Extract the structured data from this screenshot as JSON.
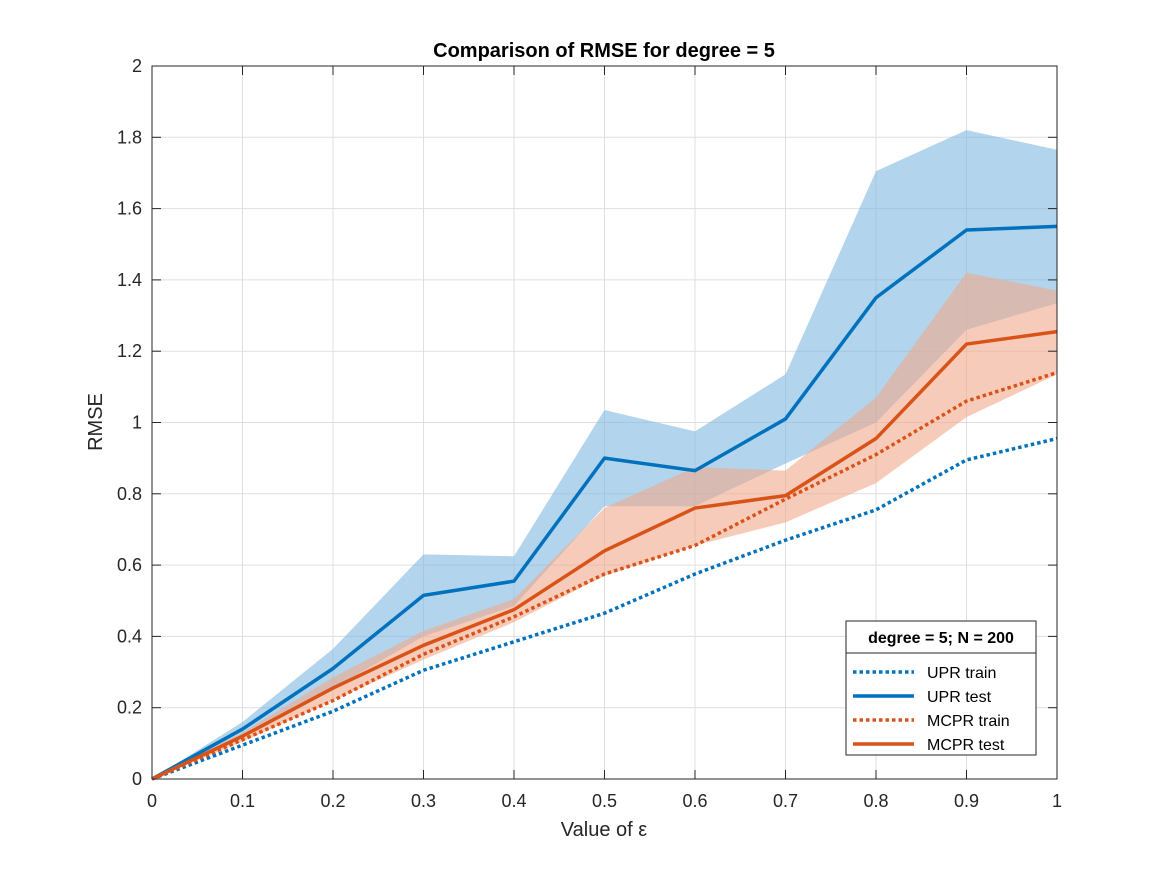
{
  "chart_data": {
    "type": "line",
    "title": "Comparison of RMSE for degree = 5",
    "xlabel": "Value of ε",
    "ylabel": "RMSE",
    "xlim": [
      0,
      1
    ],
    "ylim": [
      0,
      2
    ],
    "x": [
      0,
      0.1,
      0.2,
      0.3,
      0.4,
      0.5,
      0.6,
      0.7,
      0.8,
      0.9,
      1
    ],
    "xticks": [
      "0",
      "0.1",
      "0.2",
      "0.3",
      "0.4",
      "0.5",
      "0.6",
      "0.7",
      "0.8",
      "0.9",
      "1"
    ],
    "yticks": [
      "0",
      "0.2",
      "0.4",
      "0.6",
      "0.8",
      "1",
      "1.2",
      "1.4",
      "1.6",
      "1.8",
      "2"
    ],
    "grid": true,
    "legend_title": "degree = 5; N = 200",
    "legend_position": "bottom-right",
    "series": [
      {
        "name": "UPR train",
        "style": "dotted",
        "color": "#0072BD",
        "values": [
          0,
          0.095,
          0.19,
          0.305,
          0.385,
          0.465,
          0.575,
          0.67,
          0.755,
          0.895,
          0.955
        ]
      },
      {
        "name": "UPR test",
        "style": "solid",
        "color": "#0072BD",
        "values": [
          0,
          0.14,
          0.31,
          0.515,
          0.555,
          0.9,
          0.865,
          1.01,
          1.35,
          1.54,
          1.55
        ],
        "band_upper": [
          0,
          0.16,
          0.365,
          0.63,
          0.625,
          1.035,
          0.975,
          1.135,
          1.705,
          1.82,
          1.765
        ],
        "band_lower": [
          0,
          0.12,
          0.255,
          0.4,
          0.485,
          0.765,
          0.765,
          0.885,
          1.0,
          1.26,
          1.335
        ]
      },
      {
        "name": "MCPR train",
        "style": "dotted",
        "color": "#D95319",
        "values": [
          0,
          0.11,
          0.22,
          0.35,
          0.455,
          0.575,
          0.655,
          0.785,
          0.91,
          1.06,
          1.14
        ]
      },
      {
        "name": "MCPR test",
        "style": "solid",
        "color": "#D95319",
        "values": [
          0,
          0.12,
          0.255,
          0.375,
          0.475,
          0.64,
          0.76,
          0.795,
          0.955,
          1.22,
          1.255
        ],
        "band_upper": [
          0,
          0.13,
          0.285,
          0.415,
          0.505,
          0.76,
          0.875,
          0.865,
          1.07,
          1.42,
          1.37
        ],
        "band_lower": [
          0,
          0.105,
          0.22,
          0.335,
          0.44,
          0.57,
          0.655,
          0.72,
          0.83,
          1.015,
          1.135
        ]
      }
    ],
    "band_colors": {
      "UPR test": "#7fb8e0",
      "MCPR test": "#f0a88a"
    }
  }
}
